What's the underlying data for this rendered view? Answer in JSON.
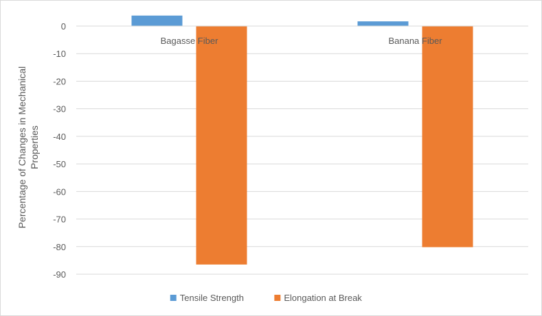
{
  "chart_data": {
    "type": "bar",
    "title": "",
    "xlabel": "",
    "ylabel_lines": [
      "Percentage of Changes in Mechanical",
      "Properties"
    ],
    "categories": [
      "Bagasse Fiber",
      "Banana Fiber"
    ],
    "series": [
      {
        "name": "Tensile Strength",
        "color": "#5B9BD5",
        "values": [
          3.8,
          1.7
        ]
      },
      {
        "name": "Elongation at Break",
        "color": "#ED7D31",
        "values": [
          -86.5,
          -80.2
        ]
      }
    ],
    "ylim": [
      -90,
      0
    ],
    "yticks": [
      0,
      -10,
      -20,
      -30,
      -40,
      -50,
      -60,
      -70,
      -80,
      -90
    ],
    "grid": true,
    "legend_position": "bottom"
  }
}
